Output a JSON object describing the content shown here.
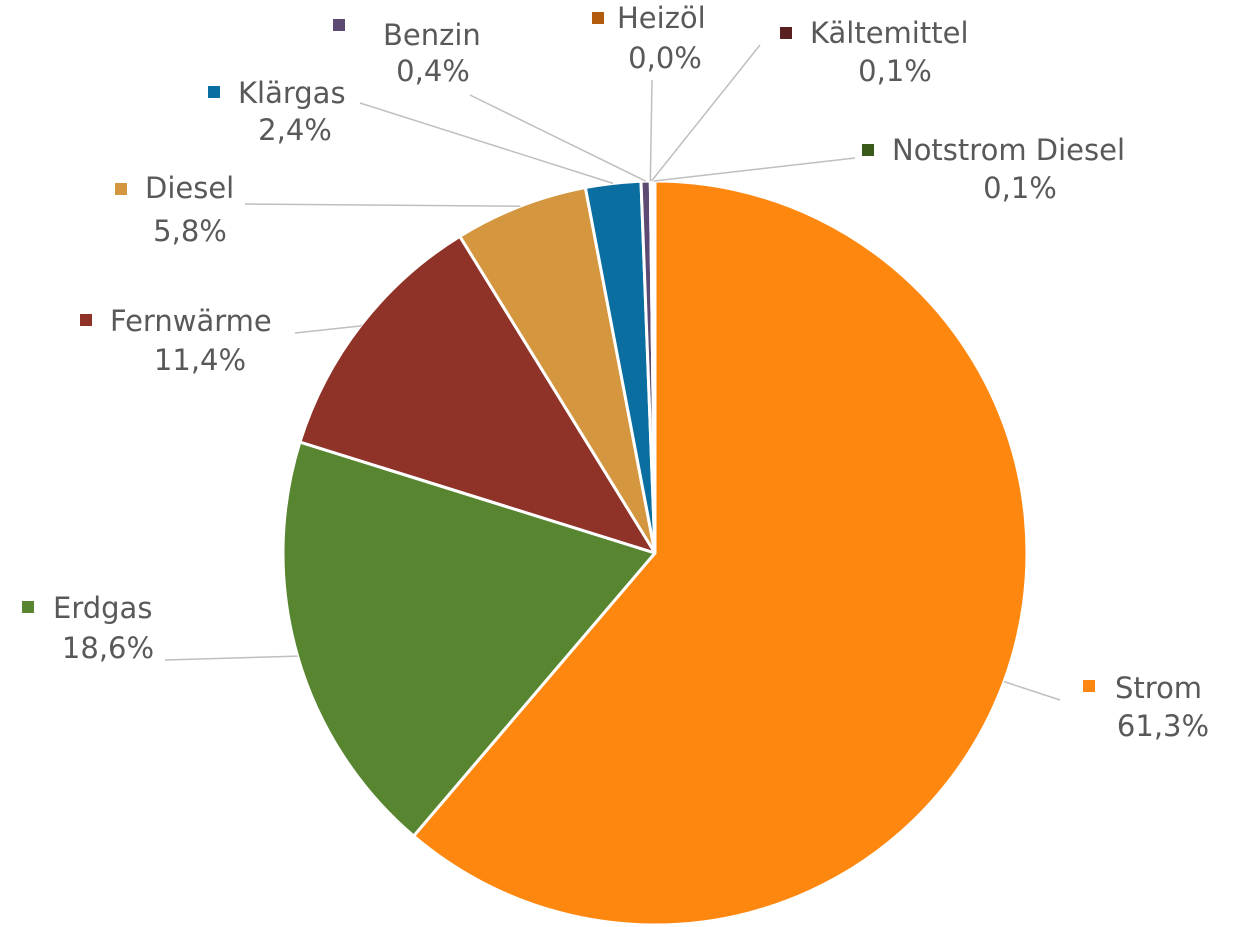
{
  "chart_data": {
    "type": "pie",
    "categories": [
      "Strom",
      "Erdgas",
      "Fernwärme",
      "Diesel",
      "Klärgas",
      "Benzin",
      "Heizöl",
      "Kältemittel",
      "Notstrom Diesel"
    ],
    "values": [
      61.3,
      18.6,
      11.4,
      5.8,
      2.4,
      0.4,
      0.0,
      0.1,
      0.1
    ],
    "value_labels": [
      "61,3%",
      "18,6%",
      "11,4%",
      "5,8%",
      "2,4%",
      "0,4%",
      "0,0%",
      "0,1%",
      "0,1%"
    ],
    "colors": [
      "#fe870f",
      "#58852f",
      "#8f3228",
      "#d4963e",
      "#0a6fa0",
      "#5c4a72",
      "#b35c10",
      "#5a2020",
      "#3a5a1a"
    ]
  }
}
